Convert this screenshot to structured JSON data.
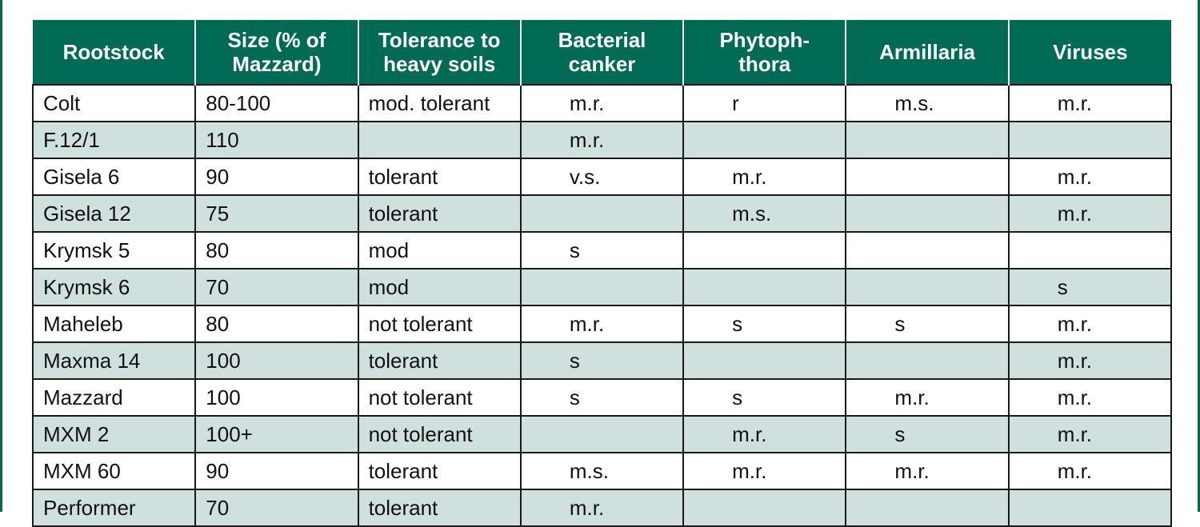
{
  "table": {
    "headers": [
      "Rootstock",
      "Size (% of\nMazzard)",
      "Tolerance to\nheavy soils",
      "Bacterial\ncanker",
      "Phytoph-\nthora",
      "Armillaria",
      "Viruses"
    ],
    "rows": [
      [
        "Colt",
        "80-100",
        "mod. tolerant",
        "m.r.",
        "r",
        "m.s.",
        "m.r."
      ],
      [
        "F.12/1",
        "110",
        null,
        "m.r.",
        null,
        null,
        null
      ],
      [
        "Gisela 6",
        "90",
        "tolerant",
        "v.s.",
        "m.r.",
        null,
        "m.r."
      ],
      [
        "Gisela 12",
        "75",
        "tolerant",
        null,
        "m.s.",
        null,
        "m.r."
      ],
      [
        "Krymsk 5",
        "80",
        "mod",
        "s",
        null,
        null,
        null
      ],
      [
        "Krymsk 6",
        "70",
        "mod",
        null,
        null,
        null,
        "s"
      ],
      [
        "Maheleb",
        "80",
        "not tolerant",
        "m.r.",
        "s",
        "s",
        "m.r."
      ],
      [
        "Maxma 14",
        "100",
        "tolerant",
        "s",
        null,
        null,
        "m.r."
      ],
      [
        "Mazzard",
        "100",
        "not tolerant",
        "s",
        "s",
        "m.r.",
        "m.r."
      ],
      [
        "MXM 2",
        "100+",
        "not tolerant",
        null,
        "m.r.",
        "s",
        "m.r."
      ],
      [
        "MXM 60",
        "90",
        "tolerant",
        "m.s.",
        "m.r.",
        "m.r.",
        "m.r."
      ],
      [
        "Performer",
        "70",
        "tolerant",
        "m.r.",
        null,
        null,
        null
      ]
    ]
  }
}
